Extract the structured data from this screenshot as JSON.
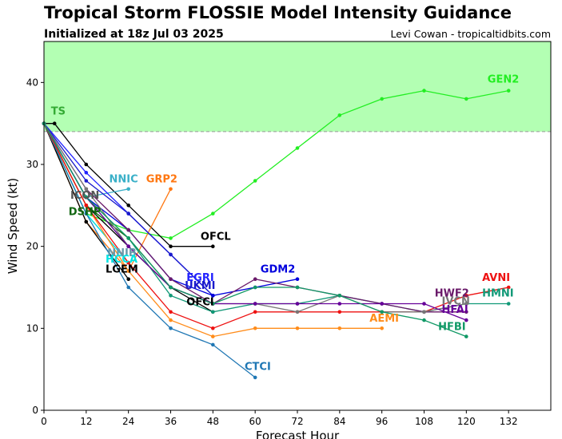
{
  "header": {
    "title": "Tropical Storm FLOSSIE Model Intensity Guidance",
    "subtitle": "Initialized at 18z Jul 03 2025",
    "credit": "Levi Cowan - tropicaltidbits.com"
  },
  "chart_data": {
    "type": "line",
    "title": "Tropical Storm FLOSSIE Model Intensity Guidance",
    "subtitle": "Initialized at 18z Jul 03 2025",
    "xlabel": "Forecast Hour",
    "ylabel": "Wind Speed (kt)",
    "xlim": [
      0,
      144
    ],
    "ylim": [
      0,
      45
    ],
    "xticks": [
      0,
      12,
      24,
      36,
      48,
      60,
      72,
      84,
      96,
      108,
      120,
      132
    ],
    "yticks": [
      0,
      10,
      20,
      30,
      40
    ],
    "shaded_region": {
      "y_from": 34,
      "y_to": 45,
      "color": "#b3ffb3",
      "boundary_color": "#999999",
      "label": "TS"
    },
    "series": [
      {
        "name": "GEN2",
        "color": "#22ee22",
        "x": [
          0,
          12,
          24,
          36,
          48,
          60,
          72,
          84,
          96,
          108,
          120,
          132
        ],
        "y": [
          35,
          24,
          22,
          21,
          24,
          28,
          32,
          36,
          38,
          39,
          38,
          39
        ]
      },
      {
        "name": "OFCL",
        "color": "#000000",
        "x": [
          0,
          3,
          12,
          24,
          36,
          48
        ],
        "y": [
          35,
          35,
          30,
          25,
          20,
          20
        ]
      },
      {
        "name": "OFCI",
        "color": "#000000",
        "x": [
          0,
          12,
          24,
          36,
          48
        ],
        "y": [
          35,
          25,
          20,
          15,
          12
        ]
      },
      {
        "name": "NNIC",
        "color": "#3ab0c8",
        "x": [
          0,
          12,
          24
        ],
        "y": [
          35,
          26,
          27
        ]
      },
      {
        "name": "GRP2",
        "color": "#ff7711",
        "x": [
          0,
          12,
          24,
          36
        ],
        "y": [
          35,
          23,
          17,
          27
        ]
      },
      {
        "name": "ICON",
        "color": "#555555",
        "x": [
          0,
          12,
          24,
          36,
          48
        ],
        "y": [
          35,
          26,
          20,
          15,
          13
        ]
      },
      {
        "name": "DSHP",
        "color": "#116611",
        "x": [
          0,
          12,
          24,
          36,
          48
        ],
        "y": [
          35,
          25,
          21,
          15,
          13
        ]
      },
      {
        "name": "NNIB",
        "color": "#6699aa",
        "x": [
          0,
          12,
          24
        ],
        "y": [
          35,
          24,
          18
        ]
      },
      {
        "name": "HCCA",
        "color": "#00e5e5",
        "x": [
          0,
          12,
          24
        ],
        "y": [
          35,
          24,
          18
        ]
      },
      {
        "name": "LGEM",
        "color": "#000000",
        "x": [
          0,
          12,
          24
        ],
        "y": [
          35,
          23,
          16
        ]
      },
      {
        "name": "EGRI",
        "color": "#2222ff",
        "x": [
          0,
          12,
          24,
          36,
          48
        ],
        "y": [
          35,
          29,
          24,
          19,
          14
        ]
      },
      {
        "name": "UKMI",
        "color": "#1a1acc",
        "x": [
          0,
          12,
          24,
          36,
          48
        ],
        "y": [
          35,
          28,
          24,
          19,
          14
        ]
      },
      {
        "name": "GDM2",
        "color": "#0000dd",
        "x": [
          0,
          12,
          24,
          36,
          48,
          60,
          72
        ],
        "y": [
          35,
          26,
          22,
          16,
          14,
          15,
          16
        ]
      },
      {
        "name": "CTCI",
        "color": "#1f77b4",
        "x": [
          0,
          12,
          24,
          36,
          48,
          60
        ],
        "y": [
          35,
          24,
          15,
          10,
          8,
          4
        ]
      },
      {
        "name": "AEMI",
        "color": "#ff8c1a",
        "x": [
          0,
          12,
          24,
          36,
          48,
          60,
          72,
          84,
          96
        ],
        "y": [
          35,
          25,
          17,
          11,
          9,
          10,
          10,
          10,
          10
        ]
      },
      {
        "name": "AVNI",
        "color": "#ee1111",
        "x": [
          0,
          12,
          24,
          36,
          48,
          60,
          72,
          84,
          96,
          108,
          120,
          132
        ],
        "y": [
          35,
          25,
          18,
          12,
          10,
          12,
          12,
          12,
          12,
          12,
          14,
          15
        ]
      },
      {
        "name": "HMNI",
        "color": "#119977",
        "x": [
          0,
          12,
          24,
          36,
          48,
          60,
          72,
          84,
          96,
          108,
          120,
          132
        ],
        "y": [
          35,
          26,
          21,
          14,
          12,
          13,
          13,
          14,
          13,
          12,
          13,
          13
        ]
      },
      {
        "name": "HWF2",
        "color": "#6a1a6a",
        "x": [
          0,
          12,
          24,
          36,
          48,
          60,
          72,
          84,
          96,
          108,
          120
        ],
        "y": [
          35,
          27,
          22,
          16,
          13,
          16,
          15,
          14,
          13,
          12,
          12
        ]
      },
      {
        "name": "IVCN",
        "color": "#777777",
        "x": [
          0,
          12,
          24,
          36,
          48,
          60,
          72,
          84,
          96,
          108,
          120
        ],
        "y": [
          35,
          27,
          20,
          15,
          13,
          13,
          12,
          14,
          12,
          12,
          13
        ]
      },
      {
        "name": "HFAI",
        "color": "#660099",
        "x": [
          0,
          12,
          24,
          36,
          48,
          60,
          72,
          84,
          96,
          108,
          120
        ],
        "y": [
          35,
          26,
          20,
          15,
          13,
          13,
          13,
          13,
          13,
          13,
          11
        ]
      },
      {
        "name": "HFBI",
        "color": "#119966",
        "x": [
          0,
          12,
          24,
          36,
          48,
          60,
          72,
          84,
          96,
          108,
          120
        ],
        "y": [
          35,
          26,
          21,
          15,
          13,
          15,
          15,
          14,
          12,
          11,
          9
        ]
      }
    ],
    "annotations": [
      {
        "text": "TS",
        "x": 2,
        "y": 36.1,
        "color": "#33aa33"
      },
      {
        "text": "GEN2",
        "x": 126,
        "y": 40,
        "color": "#22ee22"
      },
      {
        "text": "NNIC",
        "x": 18.5,
        "y": 27.8,
        "color": "#3ab0c8"
      },
      {
        "text": "GRP2",
        "x": 29,
        "y": 27.8,
        "color": "#ff7711"
      },
      {
        "text": "ICON",
        "x": 7.5,
        "y": 25.8,
        "color": "#555555"
      },
      {
        "text": "DSHP",
        "x": 7,
        "y": 23.8,
        "color": "#116611"
      },
      {
        "text": "OFCL",
        "x": 44.5,
        "y": 20.8,
        "color": "#000000"
      },
      {
        "text": "NNIB",
        "x": 18,
        "y": 18.8,
        "color": "#6699aa"
      },
      {
        "text": "HCCA",
        "x": 17.5,
        "y": 18.0,
        "color": "#00e5e5"
      },
      {
        "text": "LGEM",
        "x": 17.5,
        "y": 16.8,
        "color": "#000000"
      },
      {
        "text": "EGRI",
        "x": 40.5,
        "y": 15.8,
        "color": "#2222ff"
      },
      {
        "text": "UKMI",
        "x": 40,
        "y": 14.8,
        "color": "#1a1acc"
      },
      {
        "text": "GDM2",
        "x": 61.5,
        "y": 16.8,
        "color": "#0000dd"
      },
      {
        "text": "OFCI",
        "x": 40.5,
        "y": 12.8,
        "color": "#000000"
      },
      {
        "text": "AVNI",
        "x": 124.5,
        "y": 15.8,
        "color": "#ee1111"
      },
      {
        "text": "HWF2",
        "x": 111,
        "y": 13.9,
        "color": "#6a1a6a"
      },
      {
        "text": "HMNI",
        "x": 124.5,
        "y": 13.9,
        "color": "#119977"
      },
      {
        "text": "IVCN",
        "x": 113,
        "y": 12.9,
        "color": "#777777"
      },
      {
        "text": "HFAI",
        "x": 113,
        "y": 11.9,
        "color": "#660099"
      },
      {
        "text": "AEMI",
        "x": 92.5,
        "y": 10.8,
        "color": "#ff8c1a"
      },
      {
        "text": "HFBI",
        "x": 112,
        "y": 9.8,
        "color": "#119966"
      },
      {
        "text": "CTCI",
        "x": 57,
        "y": 4.9,
        "color": "#1f77b4"
      }
    ],
    "grid": false,
    "legend": "none"
  }
}
